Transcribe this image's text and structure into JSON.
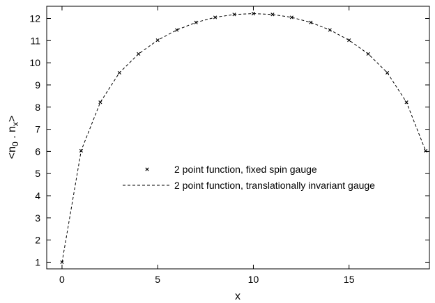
{
  "chart_data": {
    "type": "scatter",
    "title": "",
    "xlabel": "x",
    "ylabel": "<n0 . nx>",
    "ylabel_parts": {
      "open": "<n",
      "sub_left": "0",
      "mid": " . n",
      "sub_right": "x",
      "close": ">"
    },
    "xlim": [
      -0.8,
      19.2
    ],
    "ylim": [
      0.7,
      12.55
    ],
    "xticks": [
      0,
      5,
      10,
      15
    ],
    "yticks": [
      1,
      2,
      3,
      4,
      5,
      6,
      7,
      8,
      9,
      10,
      11,
      12
    ],
    "grid": false,
    "legend_position": "center-right",
    "series": [
      {
        "name": "2 point function, fixed spin gauge",
        "style": "points",
        "marker": "x",
        "color": "#000000",
        "x": [
          0,
          1,
          2,
          3,
          4,
          5,
          6,
          7,
          8,
          9,
          10,
          11,
          12,
          13,
          14,
          15,
          16,
          17,
          18,
          19
        ],
        "y": [
          1.0,
          6.03,
          8.22,
          9.55,
          10.4,
          11.02,
          11.48,
          11.82,
          12.05,
          12.18,
          12.22,
          12.18,
          12.05,
          11.82,
          11.48,
          11.02,
          10.4,
          9.55,
          8.22,
          6.03
        ]
      },
      {
        "name": "2 point function, translationally invariant gauge",
        "style": "dashed-line",
        "color": "#000000",
        "x": [
          0,
          1,
          2,
          3,
          4,
          5,
          6,
          7,
          8,
          9,
          10,
          11,
          12,
          13,
          14,
          15,
          16,
          17,
          18,
          19
        ],
        "y": [
          1.0,
          6.03,
          8.22,
          9.55,
          10.4,
          11.02,
          11.48,
          11.82,
          12.05,
          12.18,
          12.22,
          12.18,
          12.05,
          11.82,
          11.48,
          11.02,
          10.4,
          9.55,
          8.22,
          6.03
        ]
      }
    ]
  }
}
